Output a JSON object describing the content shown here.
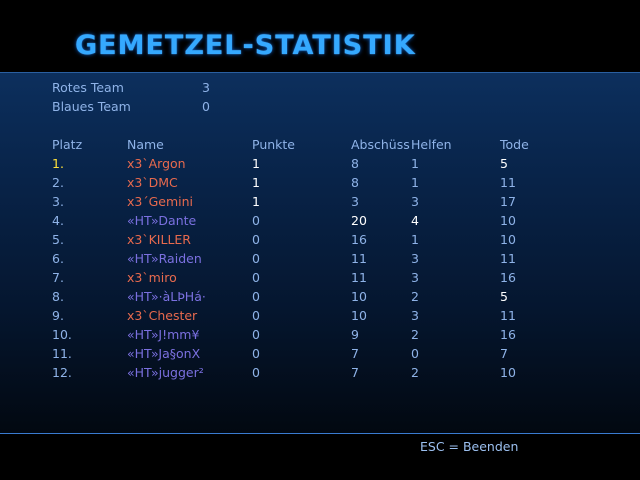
{
  "title": "GEMETZEL-STATISTIK",
  "teams": [
    {
      "label": "Rotes Team",
      "score": "3"
    },
    {
      "label": "Blaues Team",
      "score": "0"
    }
  ],
  "columns": {
    "platz": "Platz",
    "name": "Name",
    "punkte": "Punkte",
    "abschuss": "Abschüss",
    "helfen": "Helfen",
    "tode": "Tode"
  },
  "rows": [
    {
      "platz": "1.",
      "name": "x3`Argon",
      "team": "red",
      "punkte": "1",
      "abschuss": "8",
      "helfen": "1",
      "tode": "5"
    },
    {
      "platz": "2.",
      "name": "x3`DMC",
      "team": "red",
      "punkte": "1",
      "abschuss": "8",
      "helfen": "1",
      "tode": "11"
    },
    {
      "platz": "3.",
      "name": "x3´Gemini",
      "team": "red",
      "punkte": "1",
      "abschuss": "3",
      "helfen": "3",
      "tode": "17"
    },
    {
      "platz": "4.",
      "name": "«HT»Dante",
      "team": "blue",
      "punkte": "0",
      "abschuss": "20",
      "helfen": "4",
      "tode": "10"
    },
    {
      "platz": "5.",
      "name": "x3`KILLER",
      "team": "red",
      "punkte": "0",
      "abschuss": "16",
      "helfen": "1",
      "tode": "10"
    },
    {
      "platz": "6.",
      "name": "«HT»Raiden",
      "team": "blue",
      "punkte": "0",
      "abschuss": "11",
      "helfen": "3",
      "tode": "11"
    },
    {
      "platz": "7.",
      "name": "x3`miro",
      "team": "red",
      "punkte": "0",
      "abschuss": "11",
      "helfen": "3",
      "tode": "16"
    },
    {
      "platz": "8.",
      "name": "«HT»·àLÞHá·",
      "team": "blue",
      "punkte": "0",
      "abschuss": "10",
      "helfen": "2",
      "tode": "5"
    },
    {
      "platz": "9.",
      "name": "x3`Chester",
      "team": "red",
      "punkte": "0",
      "abschuss": "10",
      "helfen": "3",
      "tode": "11"
    },
    {
      "platz": "10.",
      "name": "«HT»J!mm¥",
      "team": "blue",
      "punkte": "0",
      "abschuss": "9",
      "helfen": "2",
      "tode": "16"
    },
    {
      "platz": "11.",
      "name": "«HT»Ja§onX",
      "team": "blue",
      "punkte": "0",
      "abschuss": "7",
      "helfen": "0",
      "tode": "7"
    },
    {
      "platz": "12.",
      "name": "«HT»jugger²",
      "team": "blue",
      "punkte": "0",
      "abschuss": "7",
      "helfen": "2",
      "tode": "10"
    }
  ],
  "footer": "ESC = Beenden",
  "colors": {
    "title": "#35a9ff",
    "red_team": "#e86a4e",
    "blue_team": "#7b70e0",
    "highlight": "#ffe13a",
    "text": "#8fb3e8"
  }
}
